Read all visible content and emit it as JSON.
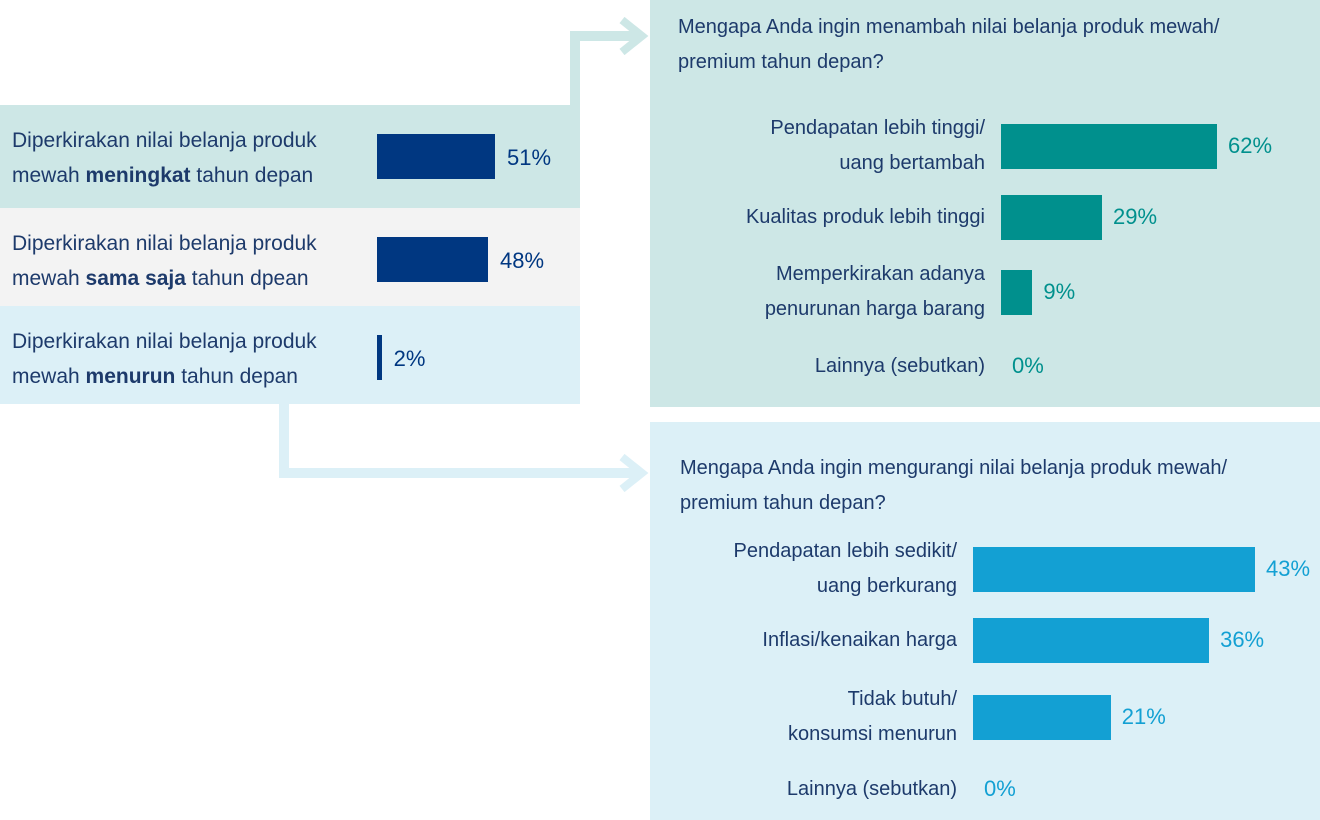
{
  "colors": {
    "navy_bar": "#003781",
    "teal_bar": "#00908d",
    "blue_bar": "#13a0d3",
    "row_teal_bg": "#cde7e6",
    "row_grey_bg": "#f3f3f3",
    "row_blue_bg": "#dcf0f7",
    "arrow_teal": "#cde7e6",
    "arrow_blue": "#dcf0f7"
  },
  "chart_data": [
    {
      "type": "bar",
      "orientation": "horizontal",
      "categories": [
        [
          "Diperkirakan nilai belanja produk",
          "mewah ",
          "meningkat",
          " tahun depan"
        ],
        [
          "Diperkirakan nilai belanja produk",
          "mewah ",
          "sama saja",
          " tahun dpean"
        ],
        [
          "Diperkirakan nilai belanja produk",
          "mewah ",
          "menurun",
          " tahun depan"
        ]
      ],
      "values": [
        51,
        48,
        2
      ],
      "value_labels": [
        "51%",
        "48%",
        "2%"
      ],
      "xlim": [
        0,
        100
      ]
    },
    {
      "type": "bar",
      "orientation": "horizontal",
      "title_lines": [
        "Mengapa Anda ingin menambah nilai belanja produk mewah/",
        "premium tahun depan?"
      ],
      "categories": [
        [
          "Pendapatan lebih tinggi/",
          "uang bertambah"
        ],
        [
          "Kualitas produk lebih tinggi"
        ],
        [
          "Memperkirakan adanya",
          "penurunan harga barang"
        ],
        [
          "Lainnya (sebutkan)"
        ]
      ],
      "values": [
        62,
        29,
        9,
        0
      ],
      "value_labels": [
        "62%",
        "29%",
        "9%",
        "0%"
      ],
      "xlim": [
        0,
        100
      ]
    },
    {
      "type": "bar",
      "orientation": "horizontal",
      "title_lines": [
        "Mengapa Anda ingin mengurangi nilai belanja produk mewah/",
        "premium tahun depan?"
      ],
      "categories": [
        [
          "Pendapatan lebih sedikit/",
          "uang berkurang"
        ],
        [
          "Inflasi/kenaikan harga"
        ],
        [
          "Tidak butuh/",
          "konsumsi menurun"
        ],
        [
          "Lainnya (sebutkan)"
        ]
      ],
      "values": [
        43,
        36,
        21,
        0
      ],
      "value_labels": [
        "43%",
        "36%",
        "21%",
        "0%"
      ],
      "xlim": [
        0,
        100
      ]
    }
  ]
}
